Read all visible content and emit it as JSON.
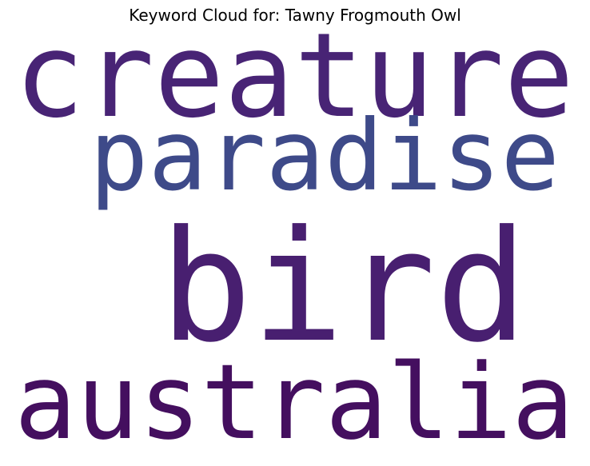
{
  "chart_data": {
    "type": "wordcloud",
    "title": "Keyword Cloud for: Tawny Frogmouth Owl",
    "words": [
      {
        "text": "creature",
        "color": "#482475"
      },
      {
        "text": "paradise",
        "color": "#3e4a89"
      },
      {
        "text": "bird",
        "color": "#481f70"
      },
      {
        "text": "australia",
        "color": "#440f5f"
      }
    ]
  }
}
